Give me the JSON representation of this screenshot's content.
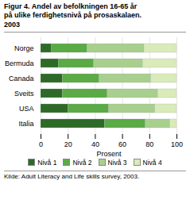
{
  "chart_data": {
    "type": "bar",
    "orientation": "horizontal",
    "stacked": true,
    "title": "Figur 4. Andel av befolkningen 16-65 år\npå ulike ferdighetsnivå på prosaskalaen.\n2003",
    "annotations": [
      "Kilde: Adult Literacy and Life skills survey, 2003."
    ],
    "xlabel": "Prosent",
    "categories": [
      "Norge",
      "Bermuda",
      "Canada",
      "Sveits",
      "USA",
      "Italia"
    ],
    "series": [
      {
        "name": "Nivå 1",
        "color": "#2d6a27",
        "values": [
          8,
          13,
          16,
          16,
          20,
          47
        ]
      },
      {
        "name": "Nivå 2",
        "color": "#5aaa46",
        "values": [
          26,
          26,
          27,
          33,
          30,
          30
        ]
      },
      {
        "name": "Nivå 3",
        "color": "#a8cf8e",
        "values": [
          42,
          36,
          38,
          37,
          34,
          18
        ]
      },
      {
        "name": "Nivå 4",
        "color": "#d9ebb8",
        "values": [
          24,
          25,
          19,
          14,
          16,
          5
        ]
      }
    ],
    "xlim": [
      0,
      100
    ],
    "xticks": [
      0,
      20,
      40,
      60,
      80,
      100
    ],
    "grid": true,
    "legend": "bottom"
  }
}
